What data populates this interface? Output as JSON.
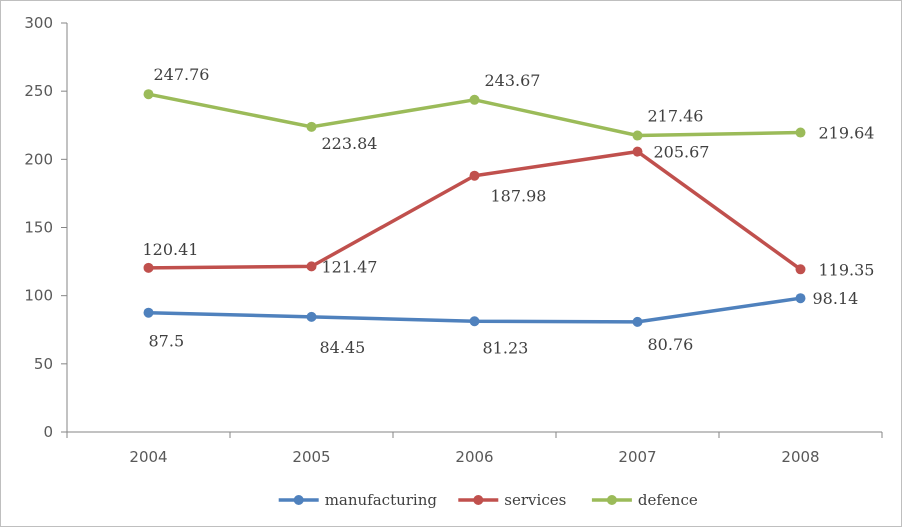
{
  "chart_data": {
    "type": "line",
    "title": "",
    "xlabel": "",
    "ylabel": "",
    "categories": [
      "2004",
      "2005",
      "2006",
      "2007",
      "2008"
    ],
    "ylim": [
      0,
      300
    ],
    "yticks": [
      0,
      50,
      100,
      150,
      200,
      250,
      300
    ],
    "grid": false,
    "legend_position": "bottom",
    "series": [
      {
        "name": "manufacturing",
        "color": "#4f81bd",
        "values": [
          87.5,
          84.45,
          81.23,
          80.76,
          98.14
        ],
        "labels": [
          "87.5",
          "84.45",
          "81.23",
          "80.76",
          "98.14"
        ]
      },
      {
        "name": "services",
        "color": "#c0504d",
        "values": [
          120.41,
          121.47,
          187.98,
          205.67,
          119.35
        ],
        "labels": [
          "120.41",
          "121.47",
          "187.98",
          "205.67",
          "119.35"
        ]
      },
      {
        "name": "defence",
        "color": "#9bbb59",
        "values": [
          247.76,
          223.84,
          243.67,
          217.46,
          219.64
        ],
        "labels": [
          "247.76",
          "223.84",
          "243.67",
          "217.46",
          "219.64"
        ]
      }
    ]
  }
}
